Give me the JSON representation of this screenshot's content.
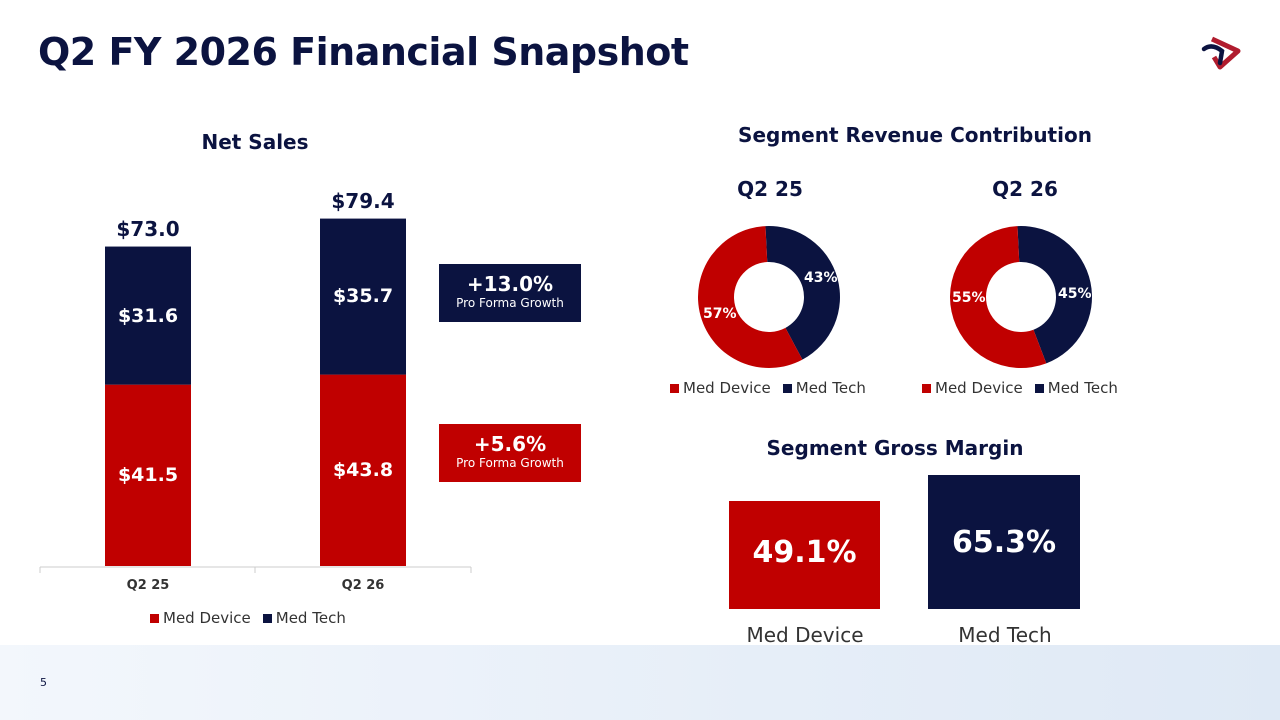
{
  "title": "Q2 FY 2026 Financial Snapshot",
  "page_number": "5",
  "colors": {
    "med_device": "#c00000",
    "med_tech": "#0b1340"
  },
  "net_sales": {
    "title": "Net Sales",
    "chart_data": {
      "type": "bar",
      "stacked": true,
      "categories": [
        "Q2 25",
        "Q2 26"
      ],
      "series": [
        {
          "name": "Med Device",
          "values": [
            41.5,
            43.8
          ],
          "labels": [
            "$41.5",
            "$43.8"
          ]
        },
        {
          "name": "Med Tech",
          "values": [
            31.6,
            35.7
          ],
          "labels": [
            "$31.6",
            "$35.7"
          ]
        }
      ],
      "totals": [
        "$73.0",
        "$79.4"
      ],
      "legend": "bottom"
    },
    "growth_tech": {
      "value": "+13.0%",
      "label": "Pro Forma Growth"
    },
    "growth_device": {
      "value": "+5.6%",
      "label": "Pro Forma Growth"
    }
  },
  "segment_revenue": {
    "title": "Segment Revenue Contribution",
    "charts": [
      {
        "title": "Q2 25",
        "type": "pie",
        "med_device": 57,
        "med_tech": 43,
        "labels": {
          "med_device": "57%",
          "med_tech": "43%"
        }
      },
      {
        "title": "Q2 26",
        "type": "pie",
        "med_device": 55,
        "med_tech": 45,
        "labels": {
          "med_device": "55%",
          "med_tech": "45%"
        }
      }
    ],
    "legend": [
      "Med Device",
      "Med Tech"
    ]
  },
  "gross_margin": {
    "title": "Segment Gross Margin",
    "items": [
      {
        "label": "Med Device",
        "value": "49.1%"
      },
      {
        "label": "Med Tech",
        "value": "65.3%"
      }
    ]
  }
}
